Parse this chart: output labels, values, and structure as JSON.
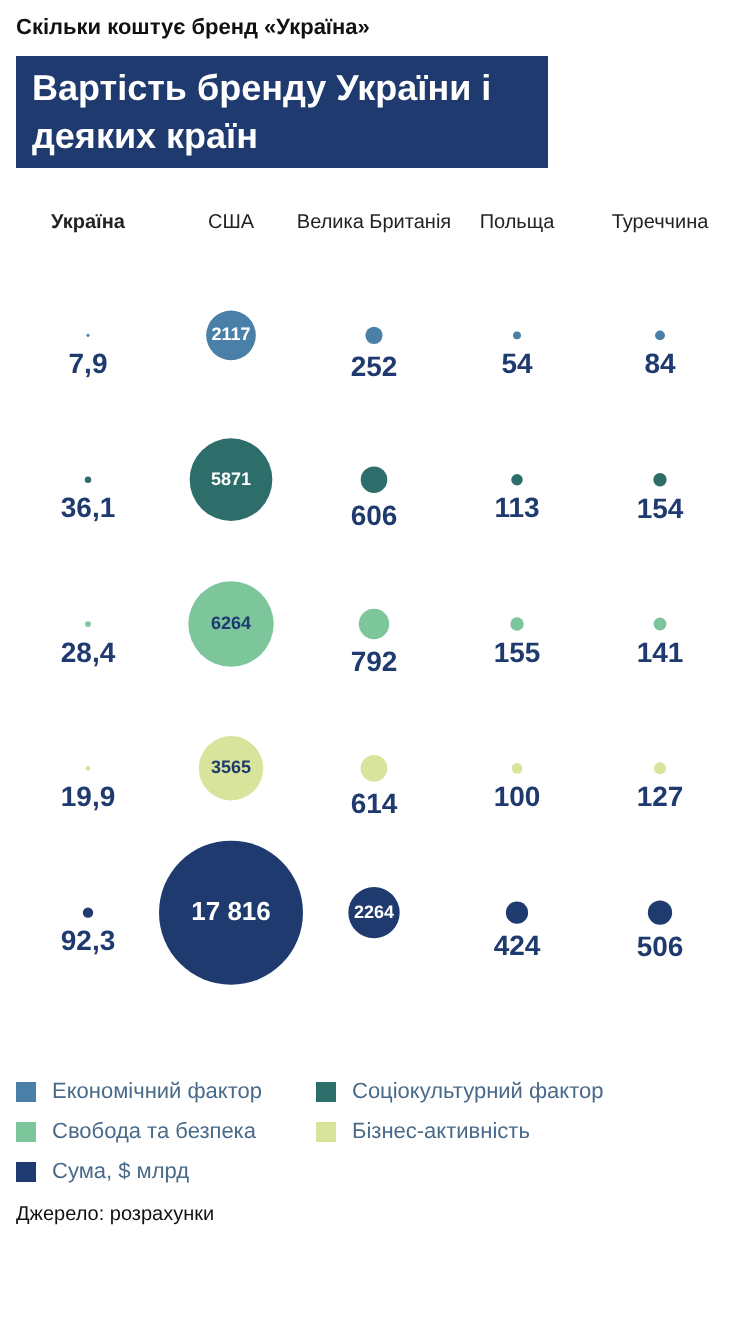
{
  "chart_data": {
    "type": "other",
    "subtitle": "Скільки коштує бренд «Україна»",
    "title": "Вартість бренду України і деяких країн",
    "categories": [
      "Україна",
      "США",
      "Велика Британія",
      "Польща",
      "Туреччина"
    ],
    "legend": "bottom",
    "annotations": [
      "Джерело: розрахунки"
    ],
    "series": [
      {
        "name": "Економічний фактор",
        "color": "#4a80a8",
        "values": [
          7.9,
          2117,
          252,
          54,
          84
        ],
        "value_labels": [
          "7,9",
          "2117",
          "252",
          "54",
          "84"
        ]
      },
      {
        "name": "Соціокультурний фактор",
        "color": "#2e6e6a",
        "values": [
          36.1,
          5871,
          606,
          113,
          154
        ],
        "value_labels": [
          "36,1",
          "5871",
          "606",
          "113",
          "154"
        ]
      },
      {
        "name": "Свобода та безпека",
        "color": "#7dc59b",
        "values": [
          28.4,
          6264,
          792,
          155,
          141
        ],
        "value_labels": [
          "28,4",
          "6264",
          "792",
          "155",
          "141"
        ]
      },
      {
        "name": "Бізнес-активність",
        "color": "#d8e49c",
        "values": [
          19.9,
          3565,
          614,
          100,
          127
        ],
        "value_labels": [
          "19,9",
          "3565",
          "614",
          "100",
          "127"
        ]
      },
      {
        "name": "Сума, $ млрд",
        "color": "#1f3a6e",
        "values": [
          92.3,
          17816,
          2264,
          424,
          506
        ],
        "value_labels": [
          "92,3",
          "17 816",
          "2264",
          "424",
          "506"
        ]
      }
    ]
  }
}
